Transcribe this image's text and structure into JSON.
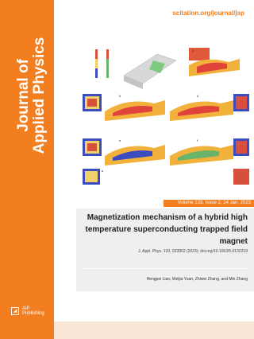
{
  "journal": {
    "title_line1": "Journal of",
    "title_line2": "Applied Physics",
    "url": "scitation.org/journal/jap",
    "publisher_line1": "AIP",
    "publisher_line2": "Publishing"
  },
  "issue": {
    "banner": "Volume 133, Issue 2, 14 Jan. 2023"
  },
  "article": {
    "title": "Magnetization mechanism of a hybrid high temperature superconducting trapped field magnet",
    "citation": "J. Appl. Phys. 133, 023902 (2023); doi.org/10.1063/5.0132219",
    "authors": "Hengpei Liao, Weijia Yuan, Zhiwei Zhang, and Min Zhang"
  },
  "figure": {
    "panel_labels": [
      "a",
      "b",
      "c",
      "d",
      "e",
      "f"
    ]
  },
  "colors": {
    "accent": "#f37e20",
    "title_box": "#efefef"
  }
}
